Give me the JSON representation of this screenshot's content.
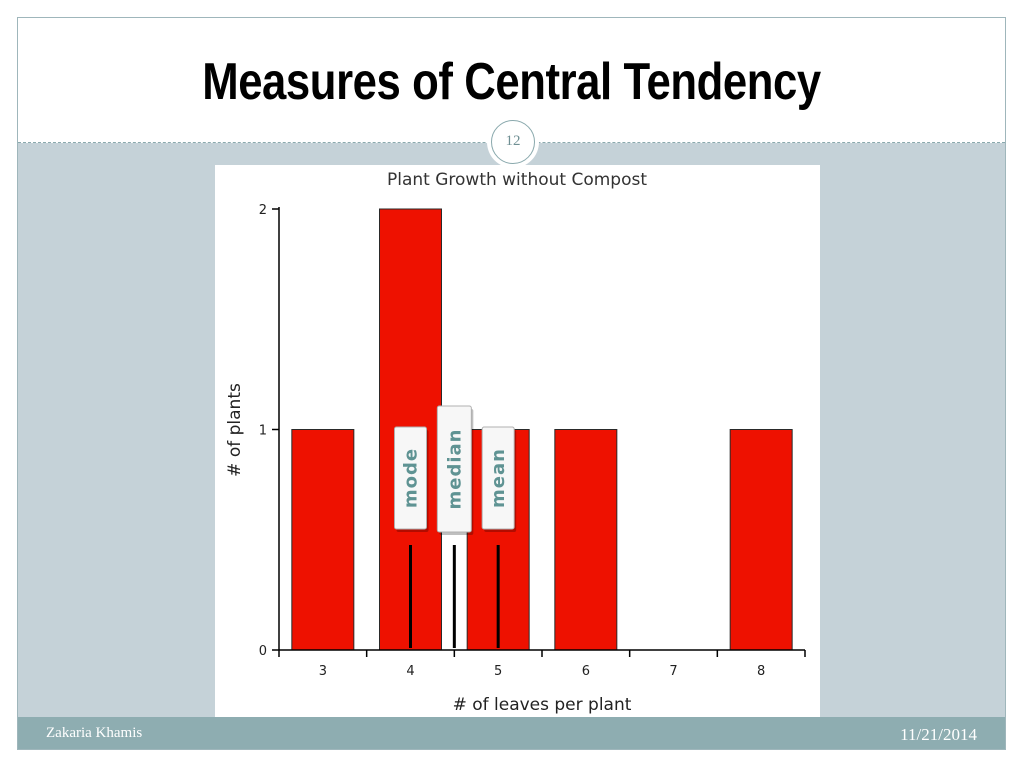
{
  "slide": {
    "title": "Measures of Central Tendency",
    "page_number": "12"
  },
  "footer": {
    "author": "Zakaria Khamis",
    "date": "11/21/2014"
  },
  "colors": {
    "bar": "#ee1100",
    "content_background": "#c5d2d8",
    "footer_background": "#8eadb1",
    "label_text": "#5f9393"
  },
  "chart_data": {
    "type": "bar",
    "title": "Plant Growth without Compost",
    "xlabel": "# of leaves per plant",
    "ylabel": "# of plants",
    "categories": [
      "3",
      "4",
      "5",
      "6",
      "7",
      "8"
    ],
    "values": [
      1,
      2,
      1,
      1,
      0,
      1
    ],
    "ylim": [
      0,
      2
    ],
    "yticks": [
      "0",
      "1",
      "2"
    ],
    "grid": false,
    "annotations": [
      {
        "label": "mode",
        "x": 4
      },
      {
        "label": "median",
        "x": 4.5
      },
      {
        "label": "mean",
        "x": 5
      }
    ]
  }
}
